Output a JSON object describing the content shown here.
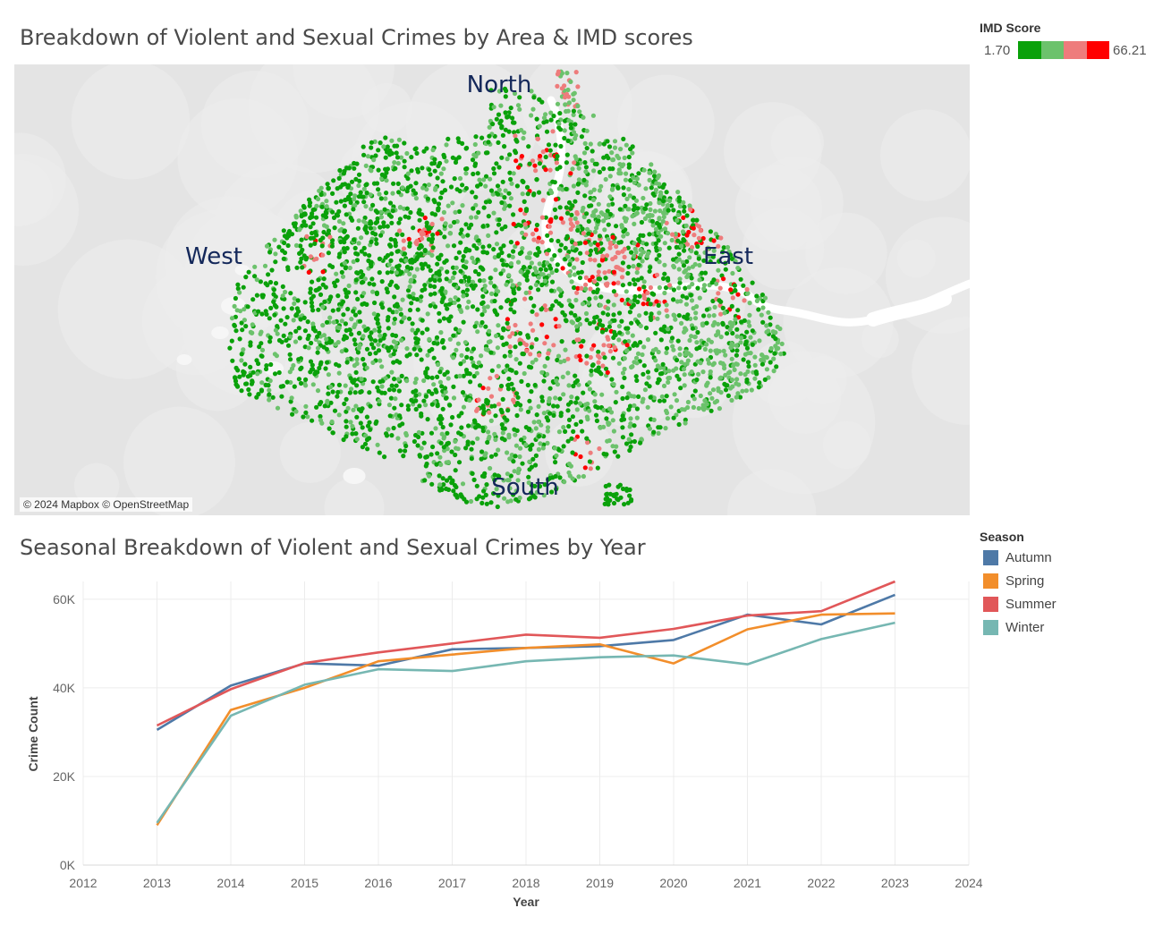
{
  "map": {
    "title": "Breakdown of Violent and Sexual Crimes by Area & IMD scores",
    "labels": {
      "north": "North",
      "south": "South",
      "east": "East",
      "west": "West"
    },
    "attribution": "© 2024 Mapbox © OpenStreetMap",
    "legend": {
      "title": "IMD Score",
      "min": "1.70",
      "max": "66.21",
      "colors": [
        "#0aa10a",
        "#6cc26c",
        "#ee7c7c",
        "#ff0000"
      ]
    }
  },
  "season_legend": {
    "title": "Season",
    "items": [
      {
        "label": "Autumn",
        "color": "#4e79a7"
      },
      {
        "label": "Spring",
        "color": "#f28e2b"
      },
      {
        "label": "Summer",
        "color": "#e15759"
      },
      {
        "label": "Winter",
        "color": "#76b7b2"
      }
    ]
  },
  "line_chart": {
    "title": "Seasonal Breakdown of Violent and Sexual Crimes by Year"
  },
  "chart_data": {
    "type": "line",
    "title": "Seasonal Breakdown of Violent and Sexual Crimes by Year",
    "xlabel": "Year",
    "ylabel": "Crime Count",
    "x_ticks": [
      "2012",
      "2013",
      "2014",
      "2015",
      "2016",
      "2017",
      "2018",
      "2019",
      "2020",
      "2021",
      "2022",
      "2023",
      "2024"
    ],
    "y_ticks": [
      "0K",
      "20K",
      "40K",
      "60K"
    ],
    "xlim": [
      2012,
      2024
    ],
    "ylim": [
      0,
      64000
    ],
    "grid": true,
    "legend_position": "right",
    "x": [
      2013,
      2014,
      2015,
      2016,
      2017,
      2018,
      2019,
      2020,
      2021,
      2022,
      2023
    ],
    "series": [
      {
        "name": "Autumn",
        "color": "#4e79a7",
        "values": [
          30500,
          40500,
          45500,
          45000,
          48700,
          49000,
          49400,
          50800,
          56500,
          54300,
          61000
        ]
      },
      {
        "name": "Spring",
        "color": "#f28e2b",
        "values": [
          9000,
          35000,
          40000,
          46000,
          47500,
          49000,
          49800,
          45500,
          53200,
          56500,
          56800
        ]
      },
      {
        "name": "Summer",
        "color": "#e15759",
        "values": [
          31500,
          39700,
          45600,
          48000,
          50000,
          52000,
          51300,
          53300,
          56300,
          57300,
          64000
        ]
      },
      {
        "name": "Winter",
        "color": "#76b7b2",
        "values": [
          9500,
          33700,
          40700,
          44200,
          43800,
          46000,
          46900,
          47300,
          45300,
          51000,
          54700
        ]
      }
    ]
  }
}
